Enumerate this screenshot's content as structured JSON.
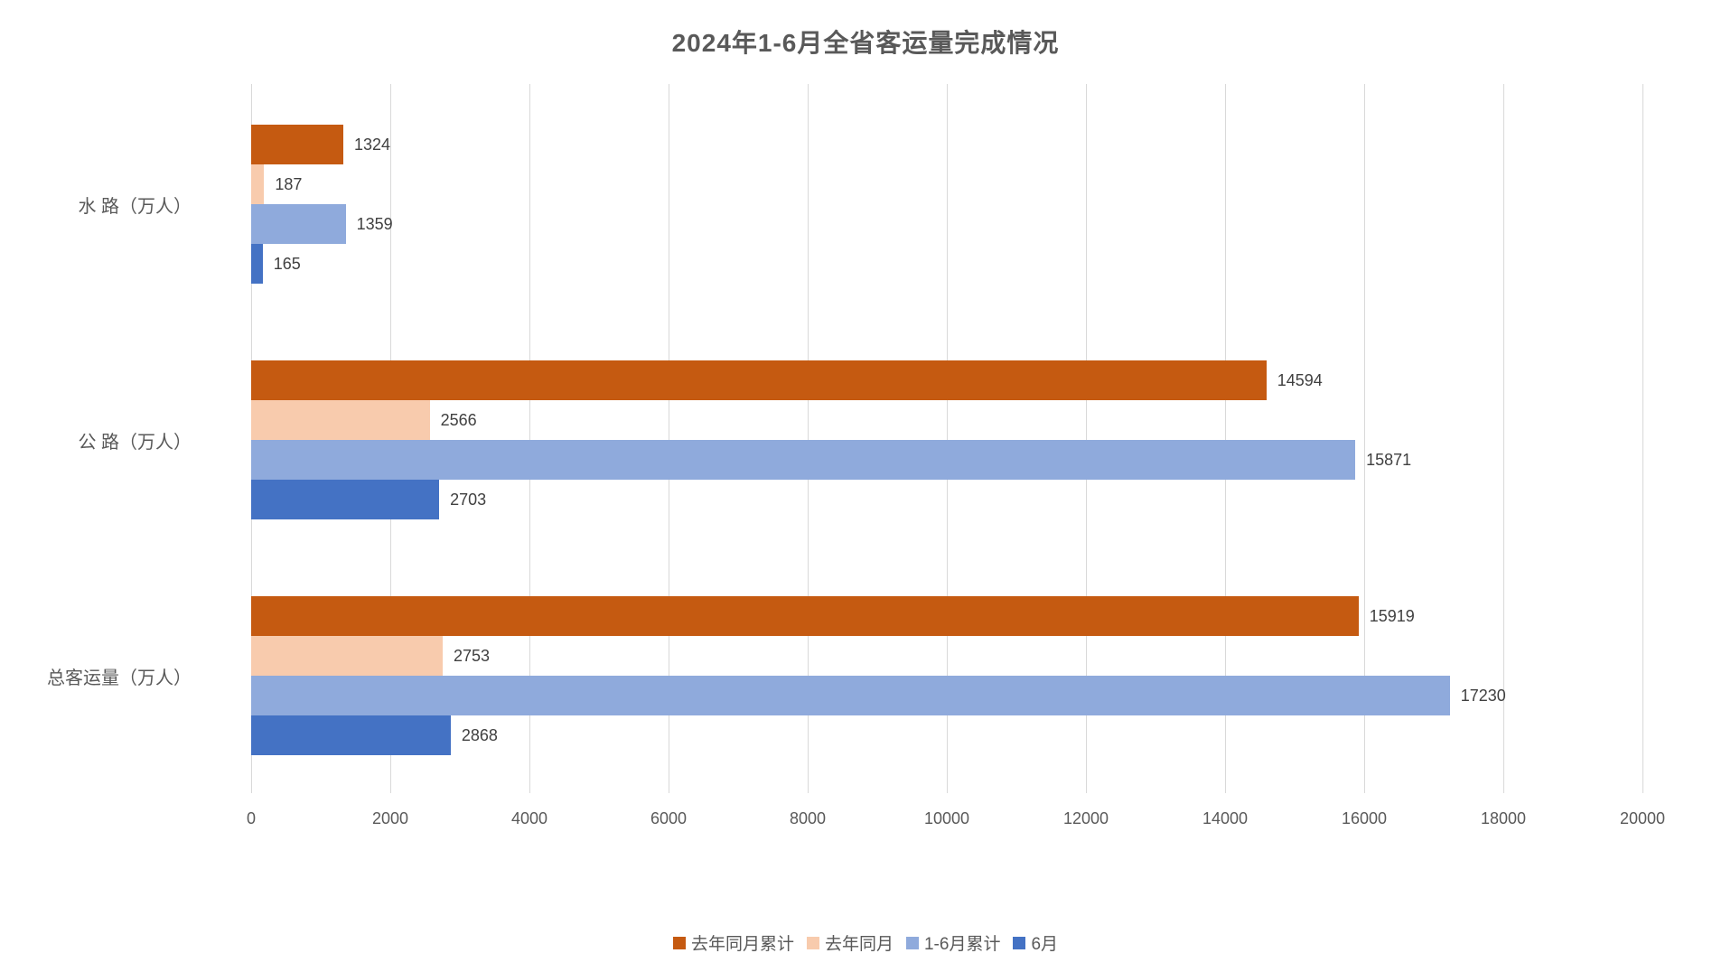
{
  "chart_data": {
    "type": "bar",
    "orientation": "horizontal",
    "title": "2024年1-6月全省客运量完成情况",
    "categories": [
      "水 路（万人）",
      "公 路（万人）",
      "总客运量（万人）"
    ],
    "series": [
      {
        "name": "去年同月累计",
        "color": "#C55A11",
        "values": [
          1324,
          14594,
          15919
        ]
      },
      {
        "name": "去年同月",
        "color": "#F8CBAD",
        "values": [
          187,
          2566,
          2753
        ]
      },
      {
        "name": "1-6月累计",
        "color": "#8FAADC",
        "values": [
          1359,
          15871,
          17230
        ]
      },
      {
        "name": "6月",
        "color": "#4472C4",
        "values": [
          165,
          2703,
          2868
        ]
      }
    ],
    "xlabel": "",
    "ylabel": "",
    "xlim": [
      0,
      20000
    ],
    "x_ticks": [
      0,
      2000,
      4000,
      6000,
      8000,
      10000,
      12000,
      14000,
      16000,
      18000,
      20000
    ],
    "grid": "vertical",
    "data_labels": "outside-end",
    "legend_position": "bottom",
    "colors": {
      "gridline": "#d9d9d9",
      "title_text": "#595959",
      "axis_text": "#595959",
      "data_label_text": "#404040"
    }
  }
}
